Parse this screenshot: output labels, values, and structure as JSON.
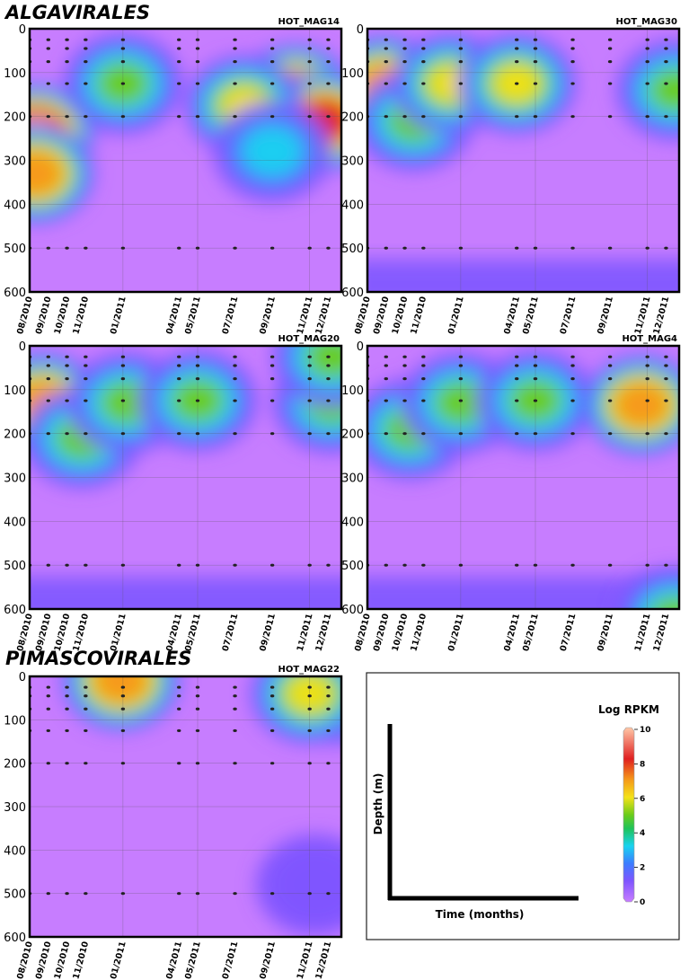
{
  "groups": [
    {
      "name": "ALGAVIRALES"
    },
    {
      "name": "PIMASCOVIRALES"
    }
  ],
  "chart_data": [
    {
      "type": "heatmap",
      "title": "HOT_MAG14",
      "group": "ALGAVIRALES",
      "x_tick_labels": [
        "08/2010",
        "09/2010",
        "10/2010",
        "11/2010",
        "01/2011",
        "04/2011",
        "05/2011",
        "07/2011",
        "09/2011",
        "11/2011",
        "12/2011"
      ],
      "x_months": [
        0,
        1,
        2,
        3,
        5,
        8,
        9,
        11,
        13,
        15,
        16
      ],
      "ylim": [
        600,
        0
      ],
      "y_ticks": [
        0,
        100,
        200,
        300,
        400,
        500,
        600
      ],
      "sample_depths": [
        25,
        45,
        75,
        125,
        200,
        500
      ],
      "hotspots": [
        {
          "month": 0.3,
          "depth": 240,
          "value": 10
        },
        {
          "month": 0.3,
          "depth": 330,
          "value": 8
        },
        {
          "month": 5.0,
          "depth": 125,
          "value": 5
        },
        {
          "month": 14.2,
          "depth": 150,
          "value": 9
        },
        {
          "month": 15.8,
          "depth": 210,
          "value": 9
        },
        {
          "month": 11.5,
          "depth": 175,
          "value": 6
        },
        {
          "month": 13.0,
          "depth": 280,
          "value": 3.5
        }
      ]
    },
    {
      "type": "heatmap",
      "title": "HOT_MAG30",
      "group": "ALGAVIRALES",
      "x_tick_labels": [
        "08/2010",
        "09/2010",
        "10/2010",
        "11/2010",
        "01/2011",
        "04/2011",
        "05/2011",
        "07/2011",
        "09/2011",
        "11/2011",
        "12/2011"
      ],
      "x_months": [
        0,
        1,
        2,
        3,
        5,
        8,
        9,
        11,
        13,
        15,
        16
      ],
      "ylim": [
        600,
        0
      ],
      "y_ticks": [
        0,
        100,
        200,
        300,
        400,
        500,
        600
      ],
      "sample_depths": [
        25,
        45,
        75,
        125,
        200,
        500
      ],
      "hotspots": [
        {
          "month": 0.9,
          "depth": 130,
          "value": 8
        },
        {
          "month": 2.5,
          "depth": 210,
          "value": 5
        },
        {
          "month": 4.5,
          "depth": 125,
          "value": 6
        },
        {
          "month": 8.0,
          "depth": 125,
          "value": 6
        },
        {
          "month": 16.5,
          "depth": 140,
          "value": 5
        }
      ]
    },
    {
      "type": "heatmap",
      "title": "HOT_MAG20",
      "group": "ALGAVIRALES",
      "x_tick_labels": [
        "08/2010",
        "09/2010",
        "10/2010",
        "11/2010",
        "01/2011",
        "04/2011",
        "05/2011",
        "07/2011",
        "09/2011",
        "11/2011",
        "12/2011"
      ],
      "x_months": [
        0,
        1,
        2,
        3,
        5,
        8,
        9,
        11,
        13,
        15,
        16
      ],
      "ylim": [
        600,
        0
      ],
      "y_ticks": [
        0,
        100,
        200,
        300,
        400,
        500,
        600
      ],
      "sample_depths": [
        25,
        45,
        75,
        125,
        200,
        500
      ],
      "hotspots": [
        {
          "month": 0.7,
          "depth": 130,
          "value": 8
        },
        {
          "month": 2.8,
          "depth": 210,
          "value": 5
        },
        {
          "month": 5.2,
          "depth": 130,
          "value": 5
        },
        {
          "month": 9.0,
          "depth": 125,
          "value": 5
        },
        {
          "month": 16.2,
          "depth": 130,
          "value": 5
        },
        {
          "month": 16.2,
          "depth": 25,
          "value": 5
        }
      ]
    },
    {
      "type": "heatmap",
      "title": "HOT_MAG4",
      "group": "ALGAVIRALES",
      "x_tick_labels": [
        "08/2010",
        "09/2010",
        "10/2010",
        "11/2010",
        "01/2011",
        "04/2011",
        "05/2011",
        "07/2011",
        "09/2011",
        "11/2011",
        "12/2011"
      ],
      "x_months": [
        0,
        1,
        2,
        3,
        5,
        8,
        9,
        11,
        13,
        15,
        16
      ],
      "ylim": [
        600,
        0
      ],
      "y_ticks": [
        0,
        100,
        200,
        300,
        400,
        500,
        600
      ],
      "sample_depths": [
        25,
        45,
        75,
        125,
        200,
        500
      ],
      "hotspots": [
        {
          "month": 2.3,
          "depth": 190,
          "value": 5
        },
        {
          "month": 5.0,
          "depth": 130,
          "value": 5
        },
        {
          "month": 9.0,
          "depth": 125,
          "value": 5
        },
        {
          "month": 14.7,
          "depth": 135,
          "value": 8
        },
        {
          "month": 16.5,
          "depth": 620,
          "value": 5
        }
      ]
    },
    {
      "type": "heatmap",
      "title": "HOT_MAG22",
      "group": "PIMASCOVIRALES",
      "x_tick_labels": [
        "08/2010",
        "09/2010",
        "10/2010",
        "11/2010",
        "01/2011",
        "04/2011",
        "05/2011",
        "07/2011",
        "09/2011",
        "11/2011",
        "12/2011"
      ],
      "x_months": [
        0,
        1,
        2,
        3,
        5,
        8,
        9,
        11,
        13,
        15,
        16
      ],
      "ylim": [
        600,
        0
      ],
      "y_ticks": [
        0,
        100,
        200,
        300,
        400,
        500,
        600
      ],
      "sample_depths": [
        25,
        45,
        75,
        125,
        200,
        500
      ],
      "hotspots": [
        {
          "month": 4.9,
          "depth": 10,
          "value": 8
        },
        {
          "month": 16.6,
          "depth": 40,
          "value": 8
        },
        {
          "month": 15.0,
          "depth": 40,
          "value": 6
        },
        {
          "month": 15.3,
          "depth": 480,
          "value": 1.5
        }
      ]
    }
  ],
  "legend": {
    "xlabel": "Time (months)",
    "ylabel": "Depth (m)",
    "colorbar_title": "Log RPKM",
    "colorbar_ticks": [
      "10",
      "8",
      "6",
      "4",
      "2",
      "0"
    ],
    "colorbar_range": [
      0,
      10
    ]
  }
}
